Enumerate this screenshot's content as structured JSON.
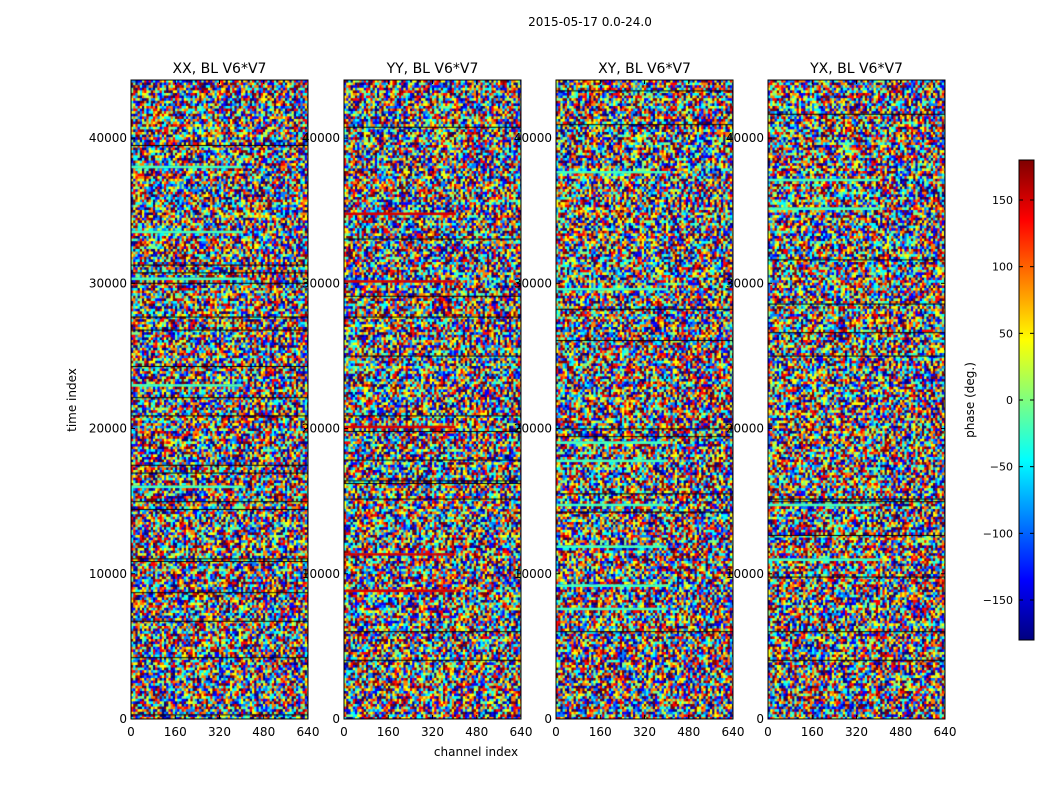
{
  "figure": {
    "suptitle": "2015-05-17 0.0-24.0",
    "xlabel": "channel index",
    "ylabel": "time index"
  },
  "colorbar": {
    "label": "phase (deg.)",
    "range": [
      -180,
      180
    ],
    "ticks": [
      150,
      100,
      50,
      0,
      -50,
      -100,
      -150
    ],
    "tick_labels": [
      "150",
      "100",
      "50",
      "0",
      "−50",
      "−100",
      "−150"
    ],
    "colormap": "jet",
    "colors": [
      "#00007f",
      "#0000ff",
      "#007fff",
      "#00ffff",
      "#7fff7f",
      "#ffff00",
      "#ff7f00",
      "#ff0000",
      "#7f0000"
    ]
  },
  "chart_data": [
    {
      "type": "heatmap",
      "title": "XX, BL V6*V7",
      "x_ticks": [
        0,
        160,
        320,
        480,
        640
      ],
      "xlim": [
        0,
        640
      ],
      "y_ticks": [
        0,
        10000,
        20000,
        30000,
        40000
      ],
      "y_tick_labels": [
        "0",
        "10000",
        "20000",
        "30000",
        "40000"
      ],
      "ylim": [
        0,
        44000
      ],
      "value": "phase (deg.)",
      "zlim": [
        -180,
        180
      ]
    },
    {
      "type": "heatmap",
      "title": "YY, BL V6*V7",
      "x_ticks": [
        0,
        160,
        320,
        480,
        640
      ],
      "xlim": [
        0,
        640
      ],
      "y_ticks": [
        0,
        10000,
        20000,
        30000,
        40000
      ],
      "y_tick_labels": [
        "0",
        "10000",
        "20000",
        "30000",
        "40000"
      ],
      "ylim": [
        0,
        44000
      ],
      "value": "phase (deg.)",
      "zlim": [
        -180,
        180
      ]
    },
    {
      "type": "heatmap",
      "title": "XY, BL V6*V7",
      "x_ticks": [
        0,
        160,
        320,
        480,
        640
      ],
      "xlim": [
        0,
        640
      ],
      "y_ticks": [
        0,
        10000,
        20000,
        30000,
        40000
      ],
      "y_tick_labels": [
        "0",
        "10000",
        "20000",
        "30000",
        "40000"
      ],
      "ylim": [
        0,
        44000
      ],
      "value": "phase (deg.)",
      "zlim": [
        -180,
        180
      ]
    },
    {
      "type": "heatmap",
      "title": "YX, BL V6*V7",
      "x_ticks": [
        0,
        160,
        320,
        480,
        640
      ],
      "xlim": [
        0,
        640
      ],
      "y_ticks": [
        0,
        10000,
        20000,
        30000,
        40000
      ],
      "y_tick_labels": [
        "0",
        "10000",
        "20000",
        "30000",
        "40000"
      ],
      "ylim": [
        0,
        44000
      ],
      "value": "phase (deg.)",
      "zlim": [
        -180,
        180
      ]
    }
  ]
}
